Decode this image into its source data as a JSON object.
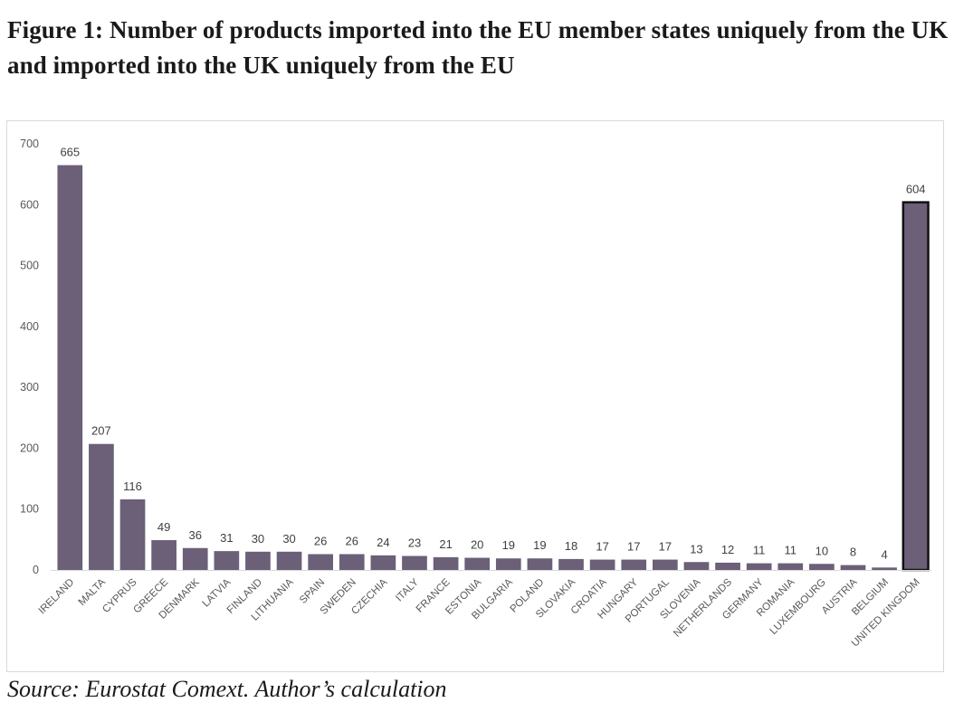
{
  "figure": {
    "title": "Figure 1: Number of products imported into the EU member states uniquely from the UK and imported into the UK uniquely from the EU",
    "source": "Source: Eurostat Comext. Author’s calculation"
  },
  "colors": {
    "bar_fill": "#6b6078",
    "highlight_outline": "#111111",
    "tick_text": "#595959",
    "label_text": "#404040",
    "frame": "#d9d9d9"
  },
  "chart_data": {
    "type": "bar",
    "title": "",
    "xlabel": "",
    "ylabel": "",
    "ylim": [
      0,
      700
    ],
    "yticks": [
      0,
      100,
      200,
      300,
      400,
      500,
      600,
      700
    ],
    "grid": false,
    "legend": "none",
    "categories": [
      "IRELAND",
      "MALTA",
      "CYPRUS",
      "GREECE",
      "DENMARK",
      "LATVIA",
      "FINLAND",
      "LITHUANIA",
      "SPAIN",
      "SWEDEN",
      "CZECHIA",
      "ITALY",
      "FRANCE",
      "ESTONIA",
      "BULGARIA",
      "POLAND",
      "SLOVAKIA",
      "CROATIA",
      "HUNGARY",
      "PORTUGAL",
      "SLOVENIA",
      "NETHERLANDS",
      "GERMANY",
      "ROMANIA",
      "LUXEMBOURG",
      "AUSTRIA",
      "BELGIUM",
      "UNITED KINGDOM"
    ],
    "values": [
      665,
      207,
      116,
      49,
      36,
      31,
      30,
      30,
      26,
      26,
      24,
      23,
      21,
      20,
      19,
      19,
      18,
      17,
      17,
      17,
      13,
      12,
      11,
      11,
      10,
      8,
      4,
      604
    ],
    "highlighted_category": "UNITED KINGDOM"
  }
}
